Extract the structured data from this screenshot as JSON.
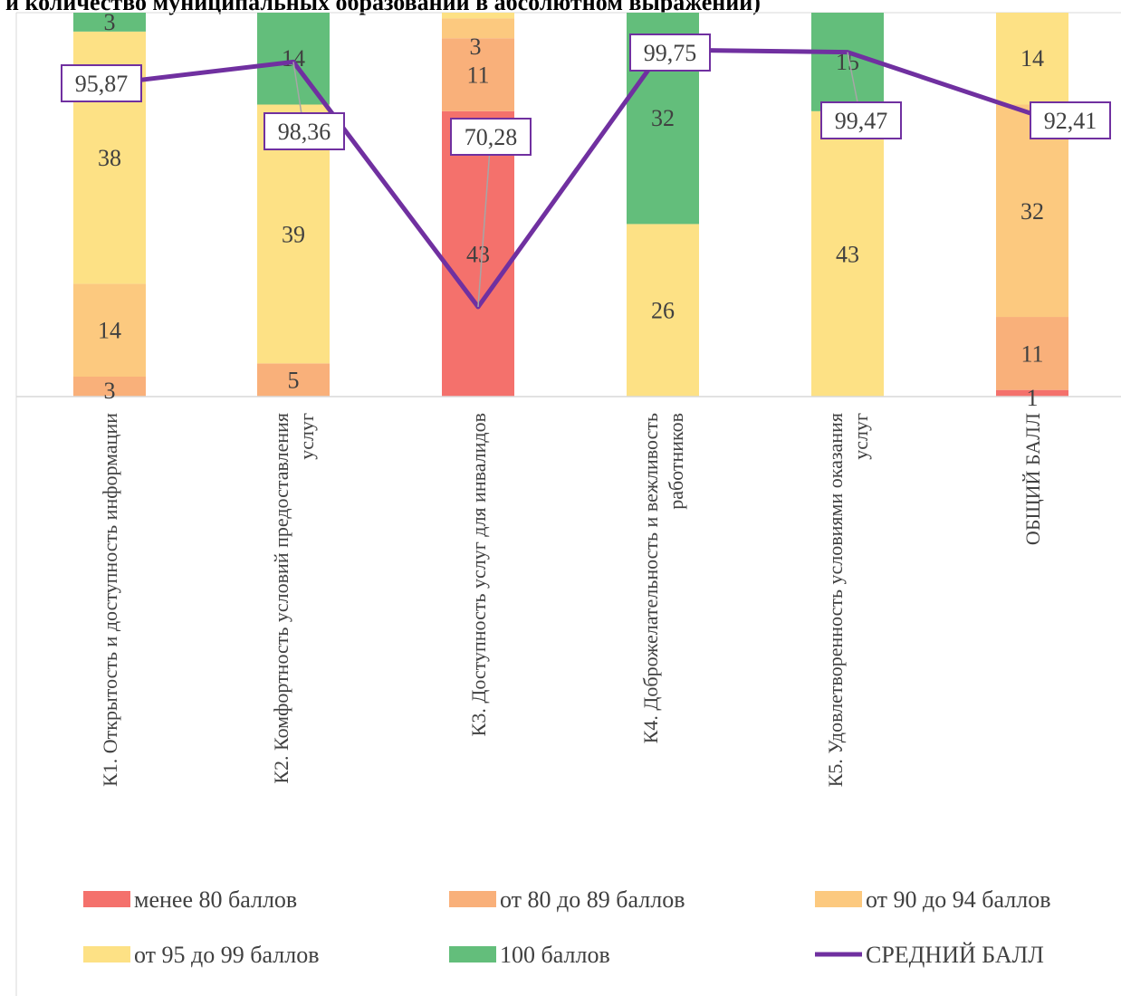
{
  "page": {
    "title": "и  количество муниципальных образований в абсолютном выражении)"
  },
  "chart_data": {
    "type": "bar",
    "stacked": true,
    "categories": [
      [
        "К1. Открытость и доступность информации"
      ],
      [
        "К2. Комфортность условий предоставления",
        "услуг"
      ],
      [
        "К3. Доступность  услуг  для инвалидов"
      ],
      [
        "К4. Доброжелательность и вежливость",
        "работников"
      ],
      [
        "К5. Удовлетворенность условиями оказания",
        "услуг"
      ],
      [
        "ОБЩИЙ БАЛЛ"
      ]
    ],
    "series": [
      {
        "name": "менее 80 баллов",
        "color": "#f4716c",
        "values": [
          0,
          0,
          43,
          0,
          0,
          1
        ]
      },
      {
        "name": "от 80 до 89 баллов",
        "color": "#f9b07a",
        "values": [
          3,
          5,
          11,
          0,
          0,
          11
        ]
      },
      {
        "name": "от 90 до 94 баллов",
        "color": "#fcc97f",
        "values": [
          14,
          0,
          3,
          0,
          0,
          32
        ]
      },
      {
        "name": "от 95 до 99 баллов",
        "color": "#fde185",
        "values": [
          38,
          39,
          1,
          26,
          43,
          14
        ]
      },
      {
        "name": "100 баллов",
        "color": "#63be7b",
        "values": [
          3,
          14,
          0,
          32,
          15,
          0
        ]
      }
    ],
    "line": {
      "name": "СРЕДНИЙ БАЛЛ",
      "color": "#7030a0",
      "values": [
        95.87,
        98.36,
        70.28,
        99.75,
        99.47,
        92.41
      ],
      "labels": [
        "95,87",
        "98,36",
        "70,28",
        "99,75",
        "99,47",
        "92,41"
      ]
    },
    "bars_ylim_visible": [
      0,
      58
    ],
    "line_ylim": [
      60,
      104
    ],
    "legend_position": "bottom",
    "grid": false
  }
}
